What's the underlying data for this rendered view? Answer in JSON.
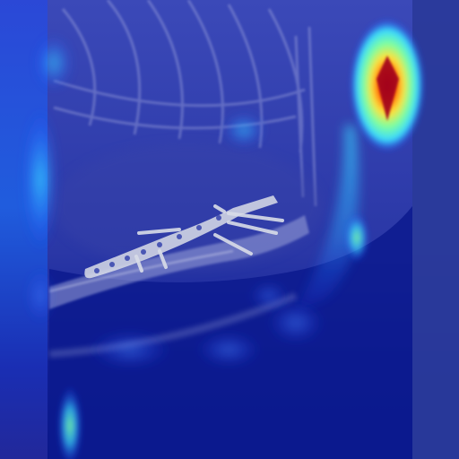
{
  "image": {
    "kind": "radiograph-with-attention-heatmap",
    "colors": {
      "base_navy": "#0b1670",
      "panel_blue": "#2a3a9a",
      "bone_gray": "#c9cbe3",
      "implant_white": "#d9dde8",
      "heat_low": "#1e3cff",
      "heat_mid": "#39d9ff",
      "heat_green": "#7dffa0",
      "heat_yellow": "#ffe23a",
      "heat_red": "#b5001a"
    }
  }
}
